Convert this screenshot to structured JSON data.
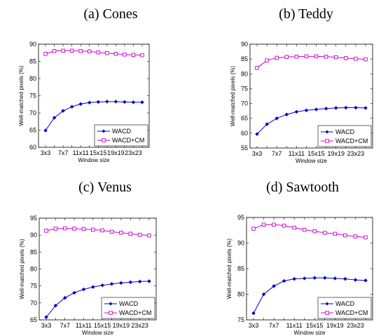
{
  "colors": {
    "WACD": "#0000cc",
    "WACD+CM": "#cc00cc"
  },
  "chart_data": [
    {
      "type": "line",
      "title": "(a) Cones",
      "xlabel": "Window size",
      "ylabel": "Well-matched pixels (%)",
      "categories": [
        "3x3",
        "5x5",
        "7x7",
        "9x9",
        "11x11",
        "13x13",
        "15x15",
        "17x17",
        "19x19",
        "21x21",
        "23x23",
        "25x25"
      ],
      "tick_labels": [
        "3x3",
        "7x7",
        "11x11",
        "15x15",
        "19x19",
        "23x23"
      ],
      "ylim": [
        60,
        90
      ],
      "yticks": [
        60,
        65,
        70,
        75,
        80,
        85,
        90
      ],
      "legend_position": "bottom-right",
      "series": [
        {
          "name": "WACD",
          "marker": "diamond",
          "values": [
            64.9,
            68.6,
            70.6,
            71.8,
            72.6,
            73.0,
            73.2,
            73.3,
            73.3,
            73.2,
            73.1,
            73.1
          ]
        },
        {
          "name": "WACD+CM",
          "marker": "square",
          "values": [
            87.2,
            88.0,
            88.1,
            88.1,
            88.0,
            87.9,
            87.6,
            87.4,
            87.2,
            87.0,
            86.9,
            86.8
          ]
        }
      ]
    },
    {
      "type": "line",
      "title": "(b) Teddy",
      "xlabel": "Window size",
      "ylabel": "Well-matched pixels (%)",
      "categories": [
        "3x3",
        "5x5",
        "7x7",
        "9x9",
        "11x11",
        "13x13",
        "15x15",
        "17x17",
        "19x19",
        "21x21",
        "23x23",
        "25x25"
      ],
      "tick_labels": [
        "3x3",
        "7x7",
        "11x11",
        "15x15",
        "19x19",
        "23x23"
      ],
      "ylim": [
        55,
        90
      ],
      "yticks": [
        55,
        60,
        65,
        70,
        75,
        80,
        85,
        90
      ],
      "legend_position": "bottom-right",
      "series": [
        {
          "name": "WACD",
          "marker": "diamond",
          "values": [
            59.7,
            63.0,
            65.0,
            66.3,
            67.2,
            67.7,
            68.0,
            68.3,
            68.5,
            68.6,
            68.6,
            68.5
          ]
        },
        {
          "name": "WACD+CM",
          "marker": "square",
          "values": [
            82.0,
            84.5,
            85.4,
            85.7,
            85.8,
            85.9,
            85.9,
            85.8,
            85.6,
            85.3,
            85.1,
            84.9
          ]
        }
      ]
    },
    {
      "type": "line",
      "title": "(c) Venus",
      "xlabel": "Window size",
      "ylabel": "Well-matched pixels (%)",
      "categories": [
        "3x3",
        "5x5",
        "7x7",
        "9x9",
        "11x11",
        "13x13",
        "15x15",
        "17x17",
        "19x19",
        "21x21",
        "23x23",
        "25x25"
      ],
      "tick_labels": [
        "3x3",
        "7x7",
        "11x11",
        "15x15",
        "19x19",
        "23x23"
      ],
      "ylim": [
        65,
        95
      ],
      "yticks": [
        65,
        70,
        75,
        80,
        85,
        90,
        95
      ],
      "legend_position": "bottom-right",
      "series": [
        {
          "name": "WACD",
          "marker": "diamond",
          "values": [
            65.8,
            69.2,
            71.5,
            73.0,
            74.0,
            74.7,
            75.2,
            75.6,
            75.9,
            76.1,
            76.3,
            76.4
          ]
        },
        {
          "name": "WACD+CM",
          "marker": "square",
          "values": [
            91.3,
            91.9,
            92.0,
            91.9,
            91.8,
            91.6,
            91.4,
            91.0,
            90.7,
            90.4,
            90.1,
            89.9
          ]
        }
      ]
    },
    {
      "type": "line",
      "title": "(d) Sawtooth",
      "xlabel": "Window size",
      "ylabel": "Well-matched pixels (%)",
      "categories": [
        "3x3",
        "5x5",
        "7x7",
        "9x9",
        "11x11",
        "13x13",
        "15x15",
        "17x17",
        "19x19",
        "21x21",
        "23x23",
        "25x25"
      ],
      "tick_labels": [
        "3x3",
        "7x7",
        "11x11",
        "15x15",
        "19x19",
        "23x23"
      ],
      "ylim": [
        75,
        95
      ],
      "yticks": [
        75,
        80,
        85,
        90,
        95
      ],
      "legend_position": "bottom-right",
      "series": [
        {
          "name": "WACD",
          "marker": "diamond",
          "values": [
            76.3,
            80.0,
            81.6,
            82.6,
            83.0,
            83.1,
            83.2,
            83.2,
            83.1,
            83.0,
            82.8,
            82.7
          ]
        },
        {
          "name": "WACD+CM",
          "marker": "square",
          "values": [
            92.8,
            93.6,
            93.6,
            93.4,
            93.0,
            92.6,
            92.3,
            92.0,
            91.8,
            91.5,
            91.3,
            91.1
          ]
        }
      ]
    }
  ]
}
